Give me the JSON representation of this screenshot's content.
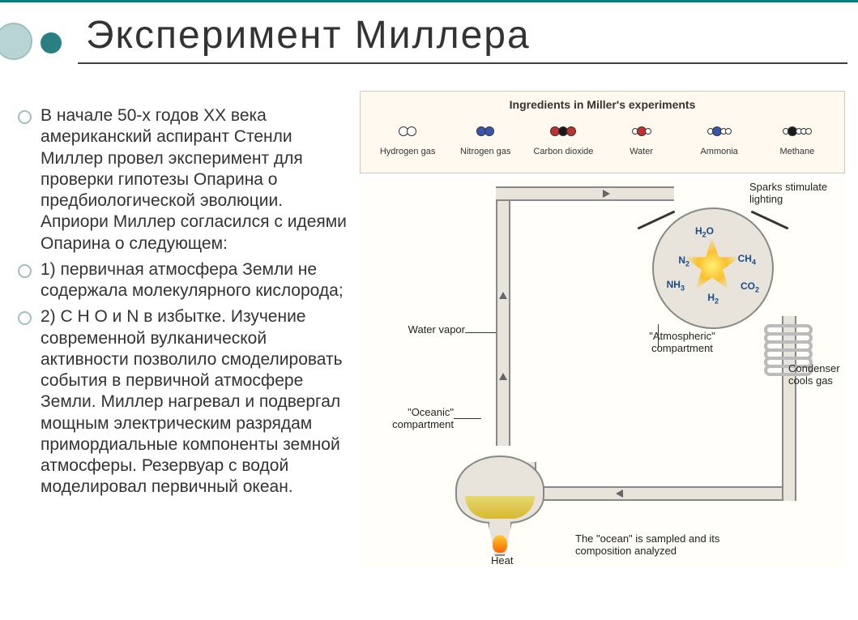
{
  "slide": {
    "title": "Эксперимент Миллера"
  },
  "bullets": [
    "В начале 50-х годов ХХ века американский аспирант Стенли Миллер провел эксперимент для проверки гипотезы Опарина о предбиологической эволюции. Априори Миллер согласился с идеями Опарина о следующем:",
    "1) первичная атмосфера Земли не содержала молекулярного кислорода;",
    "2) C H O и N в избытке. Изучение современной вулканической активности позволило смоделировать события в первичной атмосфере Земли. Миллер нагревал и подвергал мощным электрическим разрядам примордиальные компоненты земной атмосферы. Резервуар с водой моделировал первичный океан."
  ],
  "ingredients": {
    "title": "Ingredients in Miller's experiments",
    "items": [
      {
        "label": "Hydrogen gas",
        "atoms": [
          {
            "c": "#ffffff"
          },
          {
            "c": "#ffffff"
          }
        ]
      },
      {
        "label": "Nitrogen gas",
        "atoms": [
          {
            "c": "#3a55b0"
          },
          {
            "c": "#3a55b0"
          }
        ]
      },
      {
        "label": "Carbon dioxide",
        "atoms": [
          {
            "c": "#c43030"
          },
          {
            "c": "#1a1a1a"
          },
          {
            "c": "#c43030"
          }
        ]
      },
      {
        "label": "Water",
        "atoms": [
          {
            "c": "#ffffff",
            "sm": true
          },
          {
            "c": "#c43030"
          },
          {
            "c": "#ffffff",
            "sm": true
          }
        ]
      },
      {
        "label": "Ammonia",
        "atoms": [
          {
            "c": "#ffffff",
            "sm": true
          },
          {
            "c": "#3a55b0"
          },
          {
            "c": "#ffffff",
            "sm": true
          },
          {
            "c": "#ffffff",
            "sm": true
          }
        ]
      },
      {
        "label": "Methane",
        "atoms": [
          {
            "c": "#ffffff",
            "sm": true
          },
          {
            "c": "#1a1a1a"
          },
          {
            "c": "#ffffff",
            "sm": true
          },
          {
            "c": "#ffffff",
            "sm": true
          },
          {
            "c": "#ffffff",
            "sm": true
          }
        ]
      }
    ]
  },
  "diagram": {
    "labels": {
      "water_vapor": "Water vapor",
      "oceanic": "\"Oceanic\" compartment",
      "heat": "Heat",
      "sparks": "Sparks stimulate lighting",
      "atmospheric": "\"Atmospheric\" compartment",
      "condenser": "Condenser cools gas",
      "sampled": "The \"ocean\" is sampled and its composition analyzed"
    },
    "formulas": {
      "h2o": "H₂O",
      "n2": "N₂",
      "nh3": "NH₃",
      "h2": "H₂",
      "ch4": "CH₄",
      "co2": "CO₂"
    },
    "colors": {
      "tube": "#e8e4dc",
      "flask_border": "#888888",
      "water": "#d8b830",
      "spark": "#fbc02d",
      "background": "#fffef8"
    }
  },
  "theme": {
    "title_fontsize": 48,
    "body_fontsize": 21,
    "accent_dark": "#2a8080",
    "accent_light": "#b8d4d4",
    "border_color": "#008080",
    "text_color": "#333333"
  }
}
